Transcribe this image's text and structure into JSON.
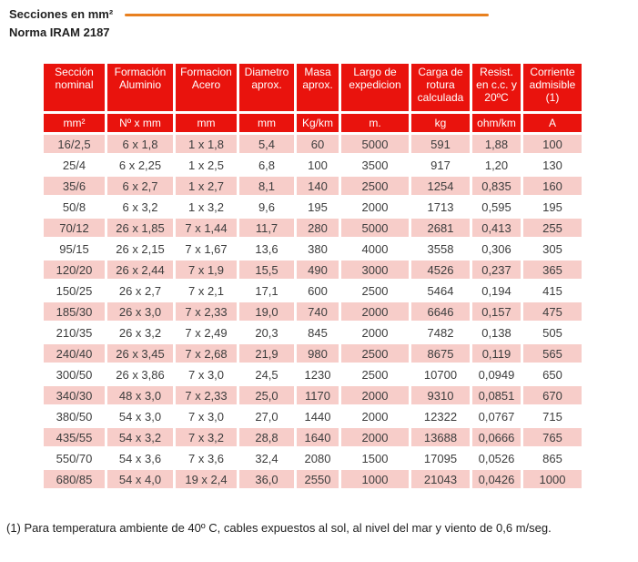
{
  "page": {
    "title": "Secciones en mm²",
    "subtitle": "Norma IRAM 2187",
    "footnote": "(1) Para temperatura ambiente de 40º C, cables expuestos al sol, al nivel del mar y viento de 0,6 m/seg."
  },
  "colors": {
    "header_red": "#e9130d",
    "row_pink": "#f7cdc9",
    "row_white": "#ffffff",
    "accent_orange": "#e8801f",
    "text_dark": "#3d3d3d"
  },
  "chart_data": {
    "type": "table",
    "title": "Secciones en mm² - Norma IRAM 2187",
    "columns": [
      {
        "label": "Sección nominal",
        "unit": "mm²"
      },
      {
        "label": "Formación Aluminio",
        "unit": "Nº x mm"
      },
      {
        "label": "Formacion Acero",
        "unit": "mm"
      },
      {
        "label": "Diametro aprox.",
        "unit": "mm"
      },
      {
        "label": "Masa aprox.",
        "unit": "Kg/km"
      },
      {
        "label": "Largo de expedicion",
        "unit": "m."
      },
      {
        "label": "Carga de rotura calculada",
        "unit": "kg"
      },
      {
        "label": "Resist. en c.c. y 20ºC",
        "unit": "ohm/km"
      },
      {
        "label": "Corriente admisible (1)",
        "unit": "A"
      }
    ],
    "rows": [
      [
        "16/2,5",
        "6 x 1,8",
        "1 x 1,8",
        "5,4",
        "60",
        "5000",
        "591",
        "1,88",
        "100"
      ],
      [
        "25/4",
        "6 x 2,25",
        "1 x 2,5",
        "6,8",
        "100",
        "3500",
        "917",
        "1,20",
        "130"
      ],
      [
        "35/6",
        "6 x 2,7",
        "1 x 2,7",
        "8,1",
        "140",
        "2500",
        "1254",
        "0,835",
        "160"
      ],
      [
        "50/8",
        "6 x 3,2",
        "1 x 3,2",
        "9,6",
        "195",
        "2000",
        "1713",
        "0,595",
        "195"
      ],
      [
        "70/12",
        "26 x 1,85",
        "7 x 1,44",
        "11,7",
        "280",
        "5000",
        "2681",
        "0,413",
        "255"
      ],
      [
        "95/15",
        "26 x 2,15",
        "7 x 1,67",
        "13,6",
        "380",
        "4000",
        "3558",
        "0,306",
        "305"
      ],
      [
        "120/20",
        "26 x 2,44",
        "7 x 1,9",
        "15,5",
        "490",
        "3000",
        "4526",
        "0,237",
        "365"
      ],
      [
        "150/25",
        "26 x 2,7",
        "7 x 2,1",
        "17,1",
        "600",
        "2500",
        "5464",
        "0,194",
        "415"
      ],
      [
        "185/30",
        "26 x 3,0",
        "7 x 2,33",
        "19,0",
        "740",
        "2000",
        "6646",
        "0,157",
        "475"
      ],
      [
        "210/35",
        "26 x 3,2",
        "7 x 2,49",
        "20,3",
        "845",
        "2000",
        "7482",
        "0,138",
        "505"
      ],
      [
        "240/40",
        "26 x 3,45",
        "7 x 2,68",
        "21,9",
        "980",
        "2500",
        "8675",
        "0,119",
        "565"
      ],
      [
        "300/50",
        "26 x 3,86",
        "7 x 3,0",
        "24,5",
        "1230",
        "2500",
        "10700",
        "0,0949",
        "650"
      ],
      [
        "340/30",
        "48 x 3,0",
        "7 x 2,33",
        "25,0",
        "1170",
        "2000",
        "9310",
        "0,0851",
        "670"
      ],
      [
        "380/50",
        "54 x 3,0",
        "7 x 3,0",
        "27,0",
        "1440",
        "2000",
        "12322",
        "0,0767",
        "715"
      ],
      [
        "435/55",
        "54 x 3,2",
        "7 x 3,2",
        "28,8",
        "1640",
        "2000",
        "13688",
        "0,0666",
        "765"
      ],
      [
        "550/70",
        "54 x 3,6",
        "7 x 3,6",
        "32,4",
        "2080",
        "1500",
        "17095",
        "0,0526",
        "865"
      ],
      [
        "680/85",
        "54 x 4,0",
        "19 x 2,4",
        "36,0",
        "2550",
        "1000",
        "21043",
        "0,0426",
        "1000"
      ]
    ]
  }
}
